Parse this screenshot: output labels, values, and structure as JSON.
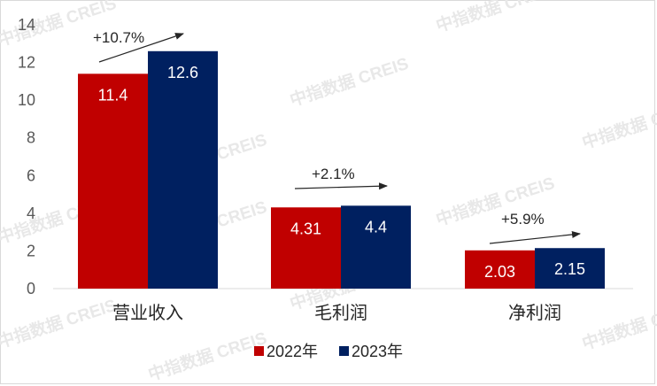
{
  "chart_data": {
    "type": "bar",
    "categories": [
      "营业收入",
      "毛利润",
      "净利润"
    ],
    "series": [
      {
        "name": "2022年",
        "color": "#C00000",
        "values": [
          11.4,
          4.31,
          2.03
        ]
      },
      {
        "name": "2023年",
        "color": "#002060",
        "values": [
          12.6,
          4.4,
          2.15
        ]
      }
    ],
    "value_labels": [
      [
        "11.4",
        "12.6"
      ],
      [
        "4.31",
        "4.4"
      ],
      [
        "2.03",
        "2.15"
      ]
    ],
    "annotations": [
      "+10.7%",
      "+2.1%",
      "+5.9%"
    ],
    "yticks": [
      "0",
      "2",
      "4",
      "6",
      "8",
      "10",
      "12",
      "14"
    ],
    "ylim": [
      0,
      14
    ],
    "grid": false,
    "legend": "bottom",
    "title": "",
    "xlabel": "",
    "ylabel": ""
  },
  "watermark": "中指数据 CREIS"
}
